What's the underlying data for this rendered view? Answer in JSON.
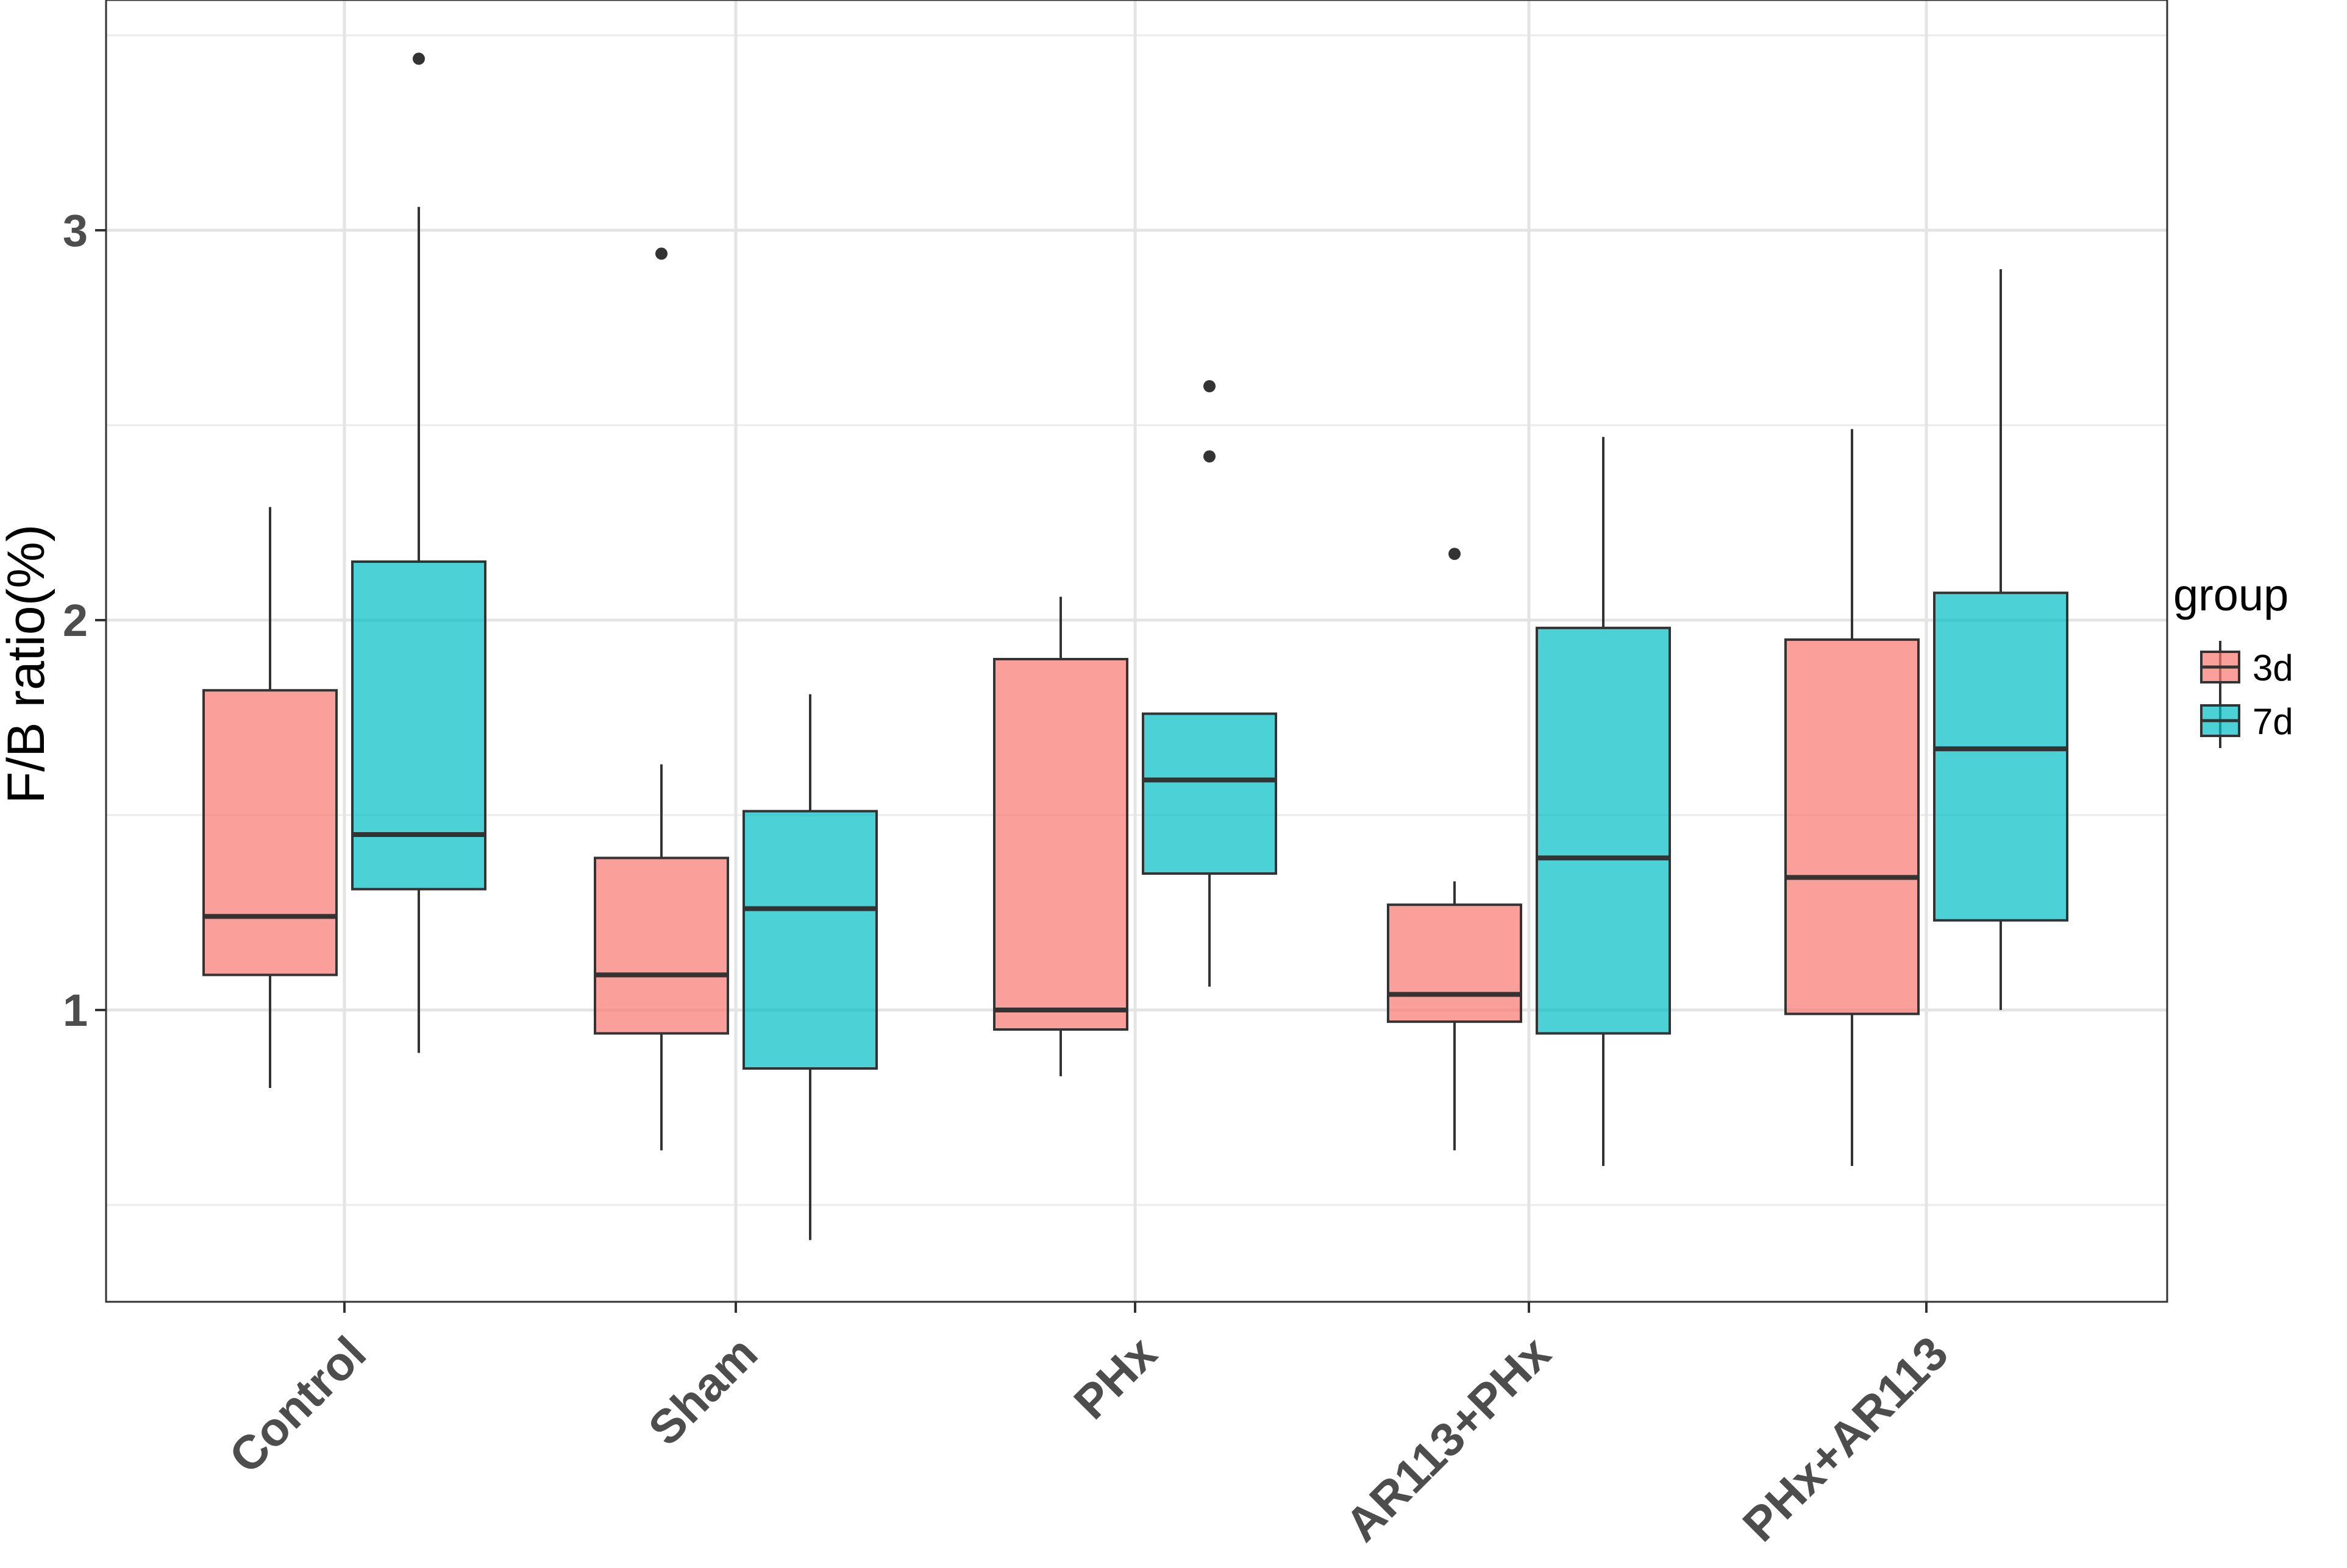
{
  "chart_data": {
    "type": "boxplot",
    "title": "",
    "xlabel": "",
    "ylabel": "F/B ratio(%)",
    "ylim": [
      0.25,
      3.5
    ],
    "y_ticks": [
      1,
      2,
      3
    ],
    "y_minor_ticks": [
      0.5,
      1.5,
      2.5,
      3.5
    ],
    "grid": true,
    "categories": [
      "Control",
      "Sham",
      "PHx",
      "AR113+PHx",
      "PHx+AR113"
    ],
    "legend": {
      "title": "group",
      "position": "right",
      "entries": [
        {
          "label": "3d",
          "color": "#F8766D"
        },
        {
          "label": "7d",
          "color": "#00BFC4"
        }
      ]
    },
    "series": [
      {
        "name": "3d",
        "color": "#F8766D",
        "boxes": [
          {
            "category": "Control",
            "min": 0.8,
            "q1": 1.09,
            "median": 1.24,
            "q3": 1.82,
            "max": 2.29,
            "outliers": []
          },
          {
            "category": "Sham",
            "min": 0.64,
            "q1": 0.94,
            "median": 1.09,
            "q3": 1.39,
            "max": 1.63,
            "outliers": [
              2.94
            ]
          },
          {
            "category": "PHx",
            "min": 0.83,
            "q1": 0.95,
            "median": 1.0,
            "q3": 1.9,
            "max": 2.06,
            "outliers": []
          },
          {
            "category": "AR113+PHx",
            "min": 0.64,
            "q1": 0.97,
            "median": 1.04,
            "q3": 1.27,
            "max": 1.33,
            "outliers": [
              2.17
            ]
          },
          {
            "category": "PHx+AR113",
            "min": 0.6,
            "q1": 0.99,
            "median": 1.34,
            "q3": 1.95,
            "max": 2.49,
            "outliers": []
          }
        ]
      },
      {
        "name": "7d",
        "color": "#00BFC4",
        "boxes": [
          {
            "category": "Control",
            "min": 0.89,
            "q1": 1.31,
            "median": 1.45,
            "q3": 2.15,
            "max": 3.06,
            "outliers": [
              3.44
            ]
          },
          {
            "category": "Sham",
            "min": 0.41,
            "q1": 0.85,
            "median": 1.26,
            "q3": 1.51,
            "max": 1.81,
            "outliers": []
          },
          {
            "category": "PHx",
            "min": 1.06,
            "q1": 1.35,
            "median": 1.59,
            "q3": 1.76,
            "max": 1.76,
            "outliers": [
              2.6,
              2.42
            ]
          },
          {
            "category": "AR113+PHx",
            "min": 0.6,
            "q1": 0.94,
            "median": 1.39,
            "q3": 1.98,
            "max": 2.47,
            "outliers": []
          },
          {
            "category": "PHx+AR113",
            "min": 1.0,
            "q1": 1.23,
            "median": 1.67,
            "q3": 2.07,
            "max": 2.9,
            "outliers": []
          }
        ]
      }
    ]
  }
}
